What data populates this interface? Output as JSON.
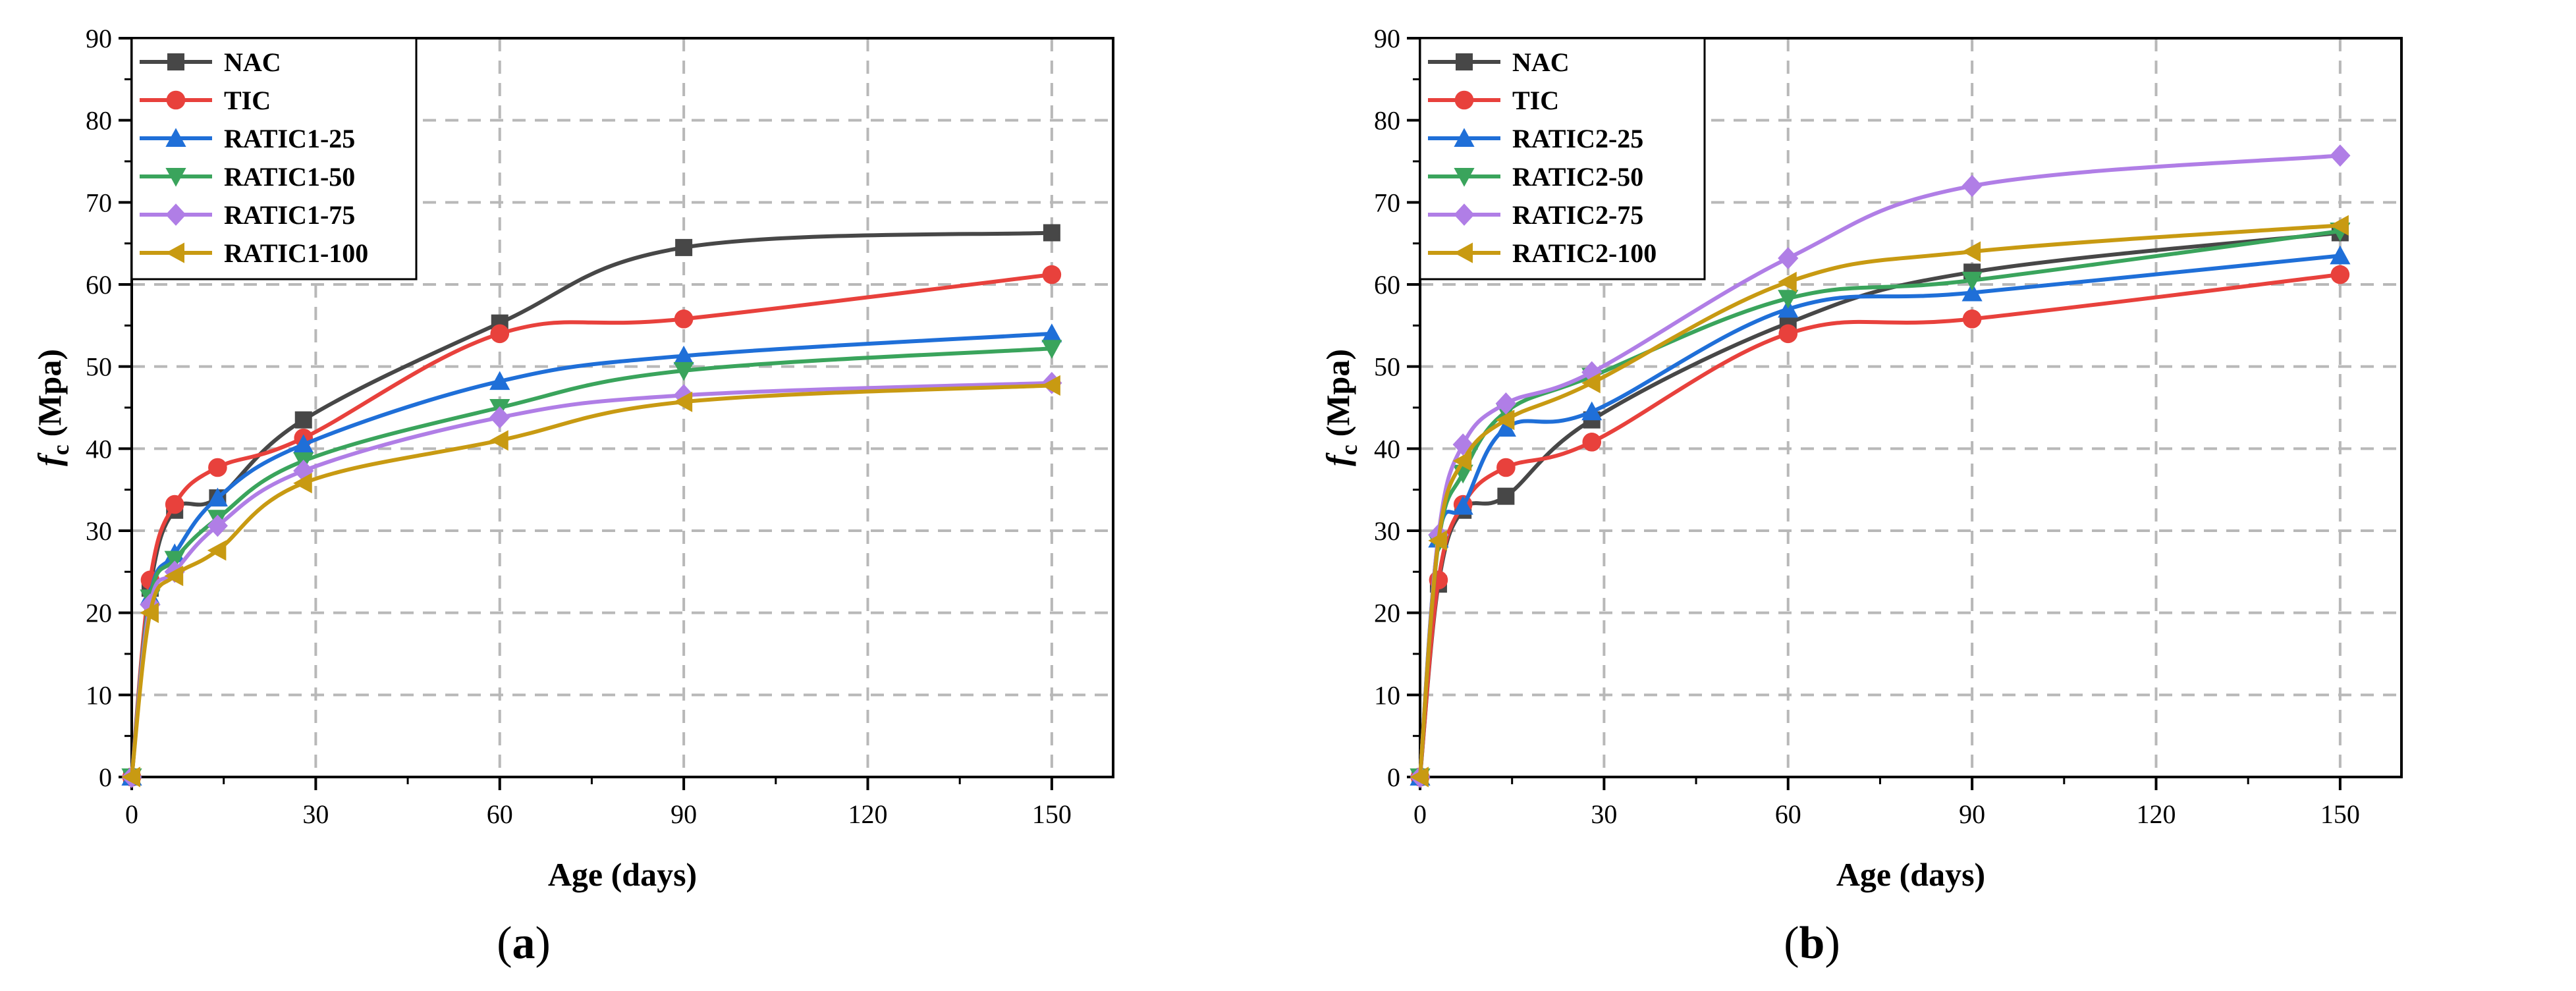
{
  "chart_data": [
    {
      "type": "line",
      "panel_label": "(a)",
      "panel_letter": "a",
      "xlabel": "Age (days)",
      "ylabel_main": "f",
      "ylabel_sub": "c",
      "ylabel_unit": "(Mpa)",
      "xlim": [
        0,
        160
      ],
      "ylim": [
        0,
        90
      ],
      "xticks": [
        0,
        30,
        60,
        90,
        120,
        150
      ],
      "yticks": [
        0,
        10,
        20,
        30,
        40,
        50,
        60,
        70,
        80,
        90
      ],
      "x": [
        0,
        3,
        7,
        14,
        28,
        60,
        90,
        150
      ],
      "grid": true,
      "legend_position": "top-left",
      "series": [
        {
          "name": "NAC",
          "color": "#474747",
          "marker": "square",
          "values": [
            0,
            23,
            32.5,
            34,
            43.5,
            55.3,
            64.5,
            66.3
          ]
        },
        {
          "name": "TIC",
          "color": "#e8413c",
          "marker": "circle",
          "values": [
            0,
            24,
            33.2,
            37.7,
            41.3,
            54,
            55.8,
            61.2
          ]
        },
        {
          "name": "RATIC1-25",
          "color": "#1f6fd8",
          "marker": "triangle-up",
          "values": [
            0,
            22,
            27.2,
            34,
            40.5,
            48.2,
            51.3,
            54
          ]
        },
        {
          "name": "RATIC1-50",
          "color": "#3aa45c",
          "marker": "triangle-down",
          "values": [
            0,
            21.8,
            26.5,
            31.5,
            38.5,
            45,
            49.5,
            52.2
          ]
        },
        {
          "name": "RATIC1-75",
          "color": "#b07ee6",
          "marker": "diamond",
          "values": [
            0,
            21,
            25,
            30.6,
            37.3,
            43.8,
            46.5,
            48
          ]
        },
        {
          "name": "RATIC1-100",
          "color": "#c89a12",
          "marker": "triangle-left",
          "values": [
            0,
            20,
            24.5,
            27.6,
            35.8,
            41,
            45.7,
            47.7
          ]
        }
      ]
    },
    {
      "type": "line",
      "panel_label": "(b)",
      "panel_letter": "b",
      "xlabel": "Age (days)",
      "ylabel_main": "f",
      "ylabel_sub": "c",
      "ylabel_unit": "(Mpa)",
      "xlim": [
        0,
        160
      ],
      "ylim": [
        0,
        90
      ],
      "xticks": [
        0,
        30,
        60,
        90,
        120,
        150
      ],
      "yticks": [
        0,
        10,
        20,
        30,
        40,
        50,
        60,
        70,
        80,
        90
      ],
      "x": [
        0,
        3,
        7,
        14,
        28,
        60,
        90,
        150
      ],
      "grid": true,
      "legend_position": "top-left",
      "series": [
        {
          "name": "NAC",
          "color": "#474747",
          "marker": "square",
          "values": [
            0,
            23.5,
            32.5,
            34.2,
            43.5,
            55.3,
            61.5,
            66.3
          ]
        },
        {
          "name": "TIC",
          "color": "#e8413c",
          "marker": "circle",
          "values": [
            0,
            24,
            33.2,
            37.7,
            40.8,
            54,
            55.8,
            61.2
          ]
        },
        {
          "name": "RATIC2-25",
          "color": "#1f6fd8",
          "marker": "triangle-up",
          "values": [
            0,
            29,
            33,
            42.5,
            44.5,
            57,
            59,
            63.5
          ]
        },
        {
          "name": "RATIC2-50",
          "color": "#3aa45c",
          "marker": "triangle-down",
          "values": [
            0,
            28.5,
            37,
            44.5,
            48.8,
            58.3,
            60.5,
            66.5
          ]
        },
        {
          "name": "RATIC2-75",
          "color": "#b07ee6",
          "marker": "diamond",
          "values": [
            0,
            29.5,
            40.5,
            45.5,
            49.3,
            63.2,
            72,
            75.7
          ]
        },
        {
          "name": "RATIC2-100",
          "color": "#c89a12",
          "marker": "triangle-left",
          "values": [
            0,
            28.8,
            38.5,
            43.5,
            48,
            60.3,
            64,
            67.2
          ]
        }
      ]
    }
  ]
}
